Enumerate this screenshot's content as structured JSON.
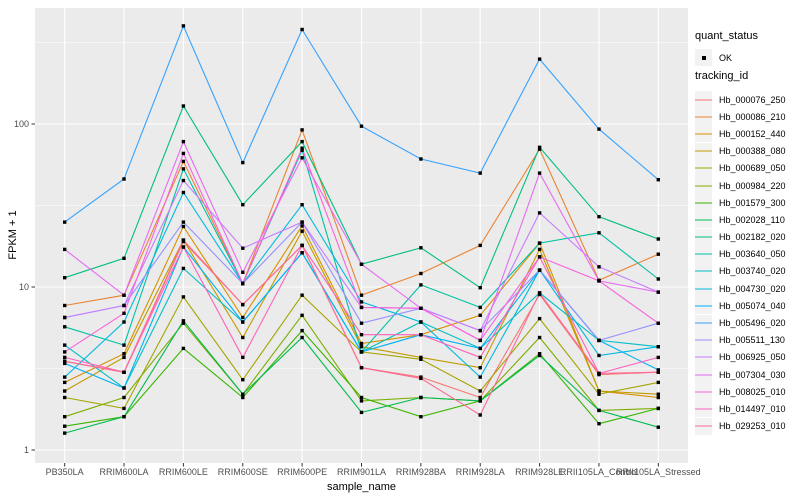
{
  "chart_data": {
    "type": "line",
    "x_type": "categorical",
    "y_scale": "log10",
    "xlabel": "sample_name",
    "ylabel": "FPKM + 1",
    "y_major_ticks": [
      1,
      10,
      100
    ],
    "ylim": [
      0.8,
      520
    ],
    "grid": true,
    "point_marker": "small black square at every data point",
    "legend_position": "right",
    "legend": {
      "quant_status": {
        "title": "quant_status",
        "items": [
          "OK"
        ]
      },
      "tracking": {
        "title": "tracking_id"
      }
    },
    "categories": [
      "PB350LA",
      "RRIM600LA",
      "RRIM600LE",
      "RRIM600SE",
      "RRIM600PE",
      "RRIM901LA",
      "RRIM928BA",
      "RRIM928LA",
      "RRIM928LE",
      "RRII105LA_Control",
      "RRII105LA_Stressed"
    ],
    "series": [
      {
        "name": "Hb_000076_250",
        "color": "#F8766D",
        "values": [
          3.5,
          3.0,
          19.0,
          7.8,
          18.0,
          3.2,
          2.8,
          2.1,
          9.0,
          2.9,
          3.0
        ]
      },
      {
        "name": "Hb_000086_210",
        "color": "#EA8331",
        "values": [
          7.7,
          8.9,
          59.0,
          10.5,
          92.0,
          8.9,
          12.1,
          18.0,
          70.0,
          11.0,
          15.9
        ]
      },
      {
        "name": "Hb_000152_440",
        "color": "#D89000",
        "values": [
          2.6,
          3.9,
          23.5,
          6.5,
          23.7,
          4.5,
          5.1,
          6.7,
          18.6,
          2.3,
          2.1
        ]
      },
      {
        "name": "Hb_000388_080",
        "color": "#C09B00",
        "values": [
          2.3,
          3.7,
          19.4,
          4.9,
          22.0,
          4.3,
          3.7,
          3.2,
          17.0,
          2.3,
          2.2
        ]
      },
      {
        "name": "Hb_000689_050",
        "color": "#A3A500",
        "values": [
          2.1,
          1.8,
          8.7,
          2.7,
          8.9,
          4.0,
          3.6,
          2.3,
          6.4,
          2.2,
          2.6
        ]
      },
      {
        "name": "Hb_000984_220",
        "color": "#7CAE00",
        "values": [
          1.6,
          2.1,
          6.0,
          2.2,
          6.7,
          2.0,
          2.1,
          2.0,
          4.9,
          1.75,
          1.8
        ]
      },
      {
        "name": "Hb_001579_300",
        "color": "#39B600",
        "values": [
          1.4,
          1.6,
          4.2,
          2.1,
          5.4,
          2.1,
          1.6,
          2.0,
          3.9,
          1.45,
          1.8
        ]
      },
      {
        "name": "Hb_002028_110",
        "color": "#00BB4E",
        "values": [
          1.27,
          1.6,
          6.2,
          2.2,
          4.9,
          1.7,
          2.1,
          2.0,
          3.8,
          1.75,
          1.38
        ]
      },
      {
        "name": "Hb_002182_020",
        "color": "#00BF7D",
        "values": [
          11.4,
          15.0,
          129.0,
          32.0,
          78.0,
          13.8,
          17.4,
          9.9,
          72.0,
          27.0,
          19.7
        ]
      },
      {
        "name": "Hb_003640_050",
        "color": "#00C1A3",
        "values": [
          5.7,
          4.4,
          53.0,
          10.5,
          69.0,
          4.0,
          10.3,
          7.5,
          18.6,
          21.5,
          11.2
        ]
      },
      {
        "name": "Hb_003740_020",
        "color": "#00BFC4",
        "values": [
          4.4,
          2.4,
          13.0,
          6.1,
          16.2,
          4.0,
          6.1,
          4.2,
          9.2,
          4.7,
          4.3
        ]
      },
      {
        "name": "Hb_004730_020",
        "color": "#00BAE0",
        "values": [
          2.8,
          6.1,
          38.0,
          10.5,
          32.0,
          8.1,
          6.1,
          2.8,
          12.7,
          3.8,
          4.3
        ]
      },
      {
        "name": "Hb_005074_040",
        "color": "#00B0F6",
        "values": [
          3.4,
          2.4,
          17.6,
          6.1,
          16.2,
          4.0,
          5.1,
          4.2,
          12.7,
          4.7,
          3.1
        ]
      },
      {
        "name": "Hb_005496_020",
        "color": "#35A2FF",
        "values": [
          25.0,
          46.0,
          400.0,
          58.0,
          380.0,
          97.0,
          61.0,
          50.0,
          250.0,
          93.0,
          45.5
        ]
      },
      {
        "name": "Hb_005511_130",
        "color": "#9590FF",
        "values": [
          6.5,
          7.7,
          25.0,
          10.5,
          25.0,
          6.0,
          7.4,
          5.4,
          12.7,
          4.7,
          6.0
        ]
      },
      {
        "name": "Hb_006925_050",
        "color": "#C77CFF",
        "values": [
          6.5,
          7.7,
          45.0,
          17.3,
          25.0,
          7.5,
          7.4,
          5.4,
          28.5,
          13.3,
          9.3
        ]
      },
      {
        "name": "Hb_007304_030",
        "color": "#E76BF3",
        "values": [
          17.0,
          8.9,
          78.0,
          12.3,
          62.0,
          13.8,
          7.4,
          4.7,
          50.0,
          10.9,
          9.3
        ]
      },
      {
        "name": "Hb_008025_010",
        "color": "#FA62DB",
        "values": [
          4.0,
          6.9,
          66.0,
          10.5,
          71.0,
          7.5,
          7.4,
          4.7,
          15.3,
          10.9,
          6.0
        ]
      },
      {
        "name": "Hb_014497_010",
        "color": "#FF62BC",
        "values": [
          3.7,
          3.0,
          17.6,
          3.7,
          18.0,
          5.1,
          5.1,
          3.7,
          15.3,
          2.95,
          3.7
        ]
      },
      {
        "name": "Hb_029253_010",
        "color": "#FF6A98",
        "values": [
          3.5,
          3.0,
          19.4,
          7.8,
          18.0,
          3.2,
          2.75,
          1.64,
          9.2,
          2.95,
          3.0
        ]
      }
    ]
  },
  "colors": {
    "panel_bg": "#EBEBEB",
    "grid": "#FFFFFF",
    "legend_key_bg": "#F2F2F2",
    "tick_text": "#4D4D4D",
    "axis_text": "#000000",
    "point": "#000000"
  }
}
